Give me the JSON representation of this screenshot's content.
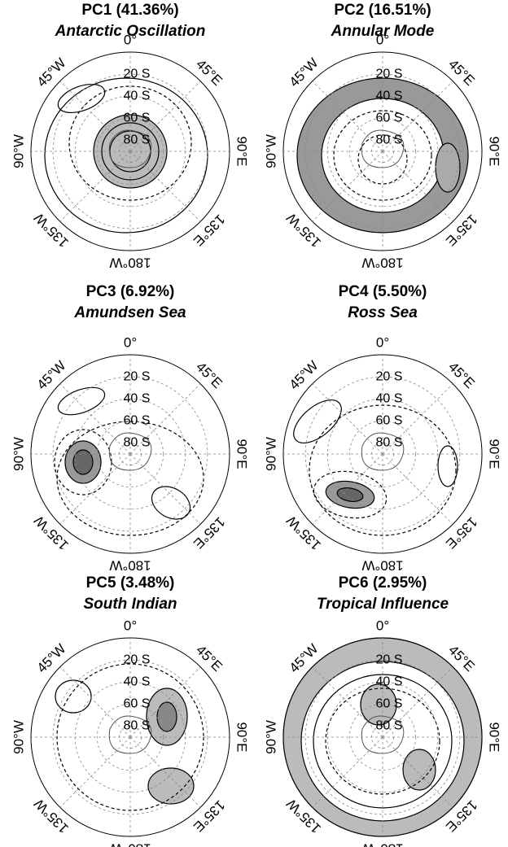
{
  "panels": [
    {
      "title": "PC1 (41.36%)",
      "subtitle": "Antarctic Oscillation"
    },
    {
      "title": "PC2 (16.51%)",
      "subtitle": "Annular Mode"
    },
    {
      "title": "PC3 (6.92%)",
      "subtitle": "Amundsen Sea"
    },
    {
      "title": "PC4 (5.50%)",
      "subtitle": "Ross Sea"
    },
    {
      "title": "PC5 (3.48%)",
      "subtitle": "South Indian"
    },
    {
      "title": "PC6 (2.95%)",
      "subtitle": "Tropical Influence"
    }
  ],
  "latitudes": [
    "20 S",
    "40 S",
    "60 S",
    "80 S"
  ],
  "longitudes": [
    "0°",
    "45°E",
    "90°E",
    "135°E",
    "180°W",
    "135°W",
    "90°W",
    "45°W"
  ]
}
